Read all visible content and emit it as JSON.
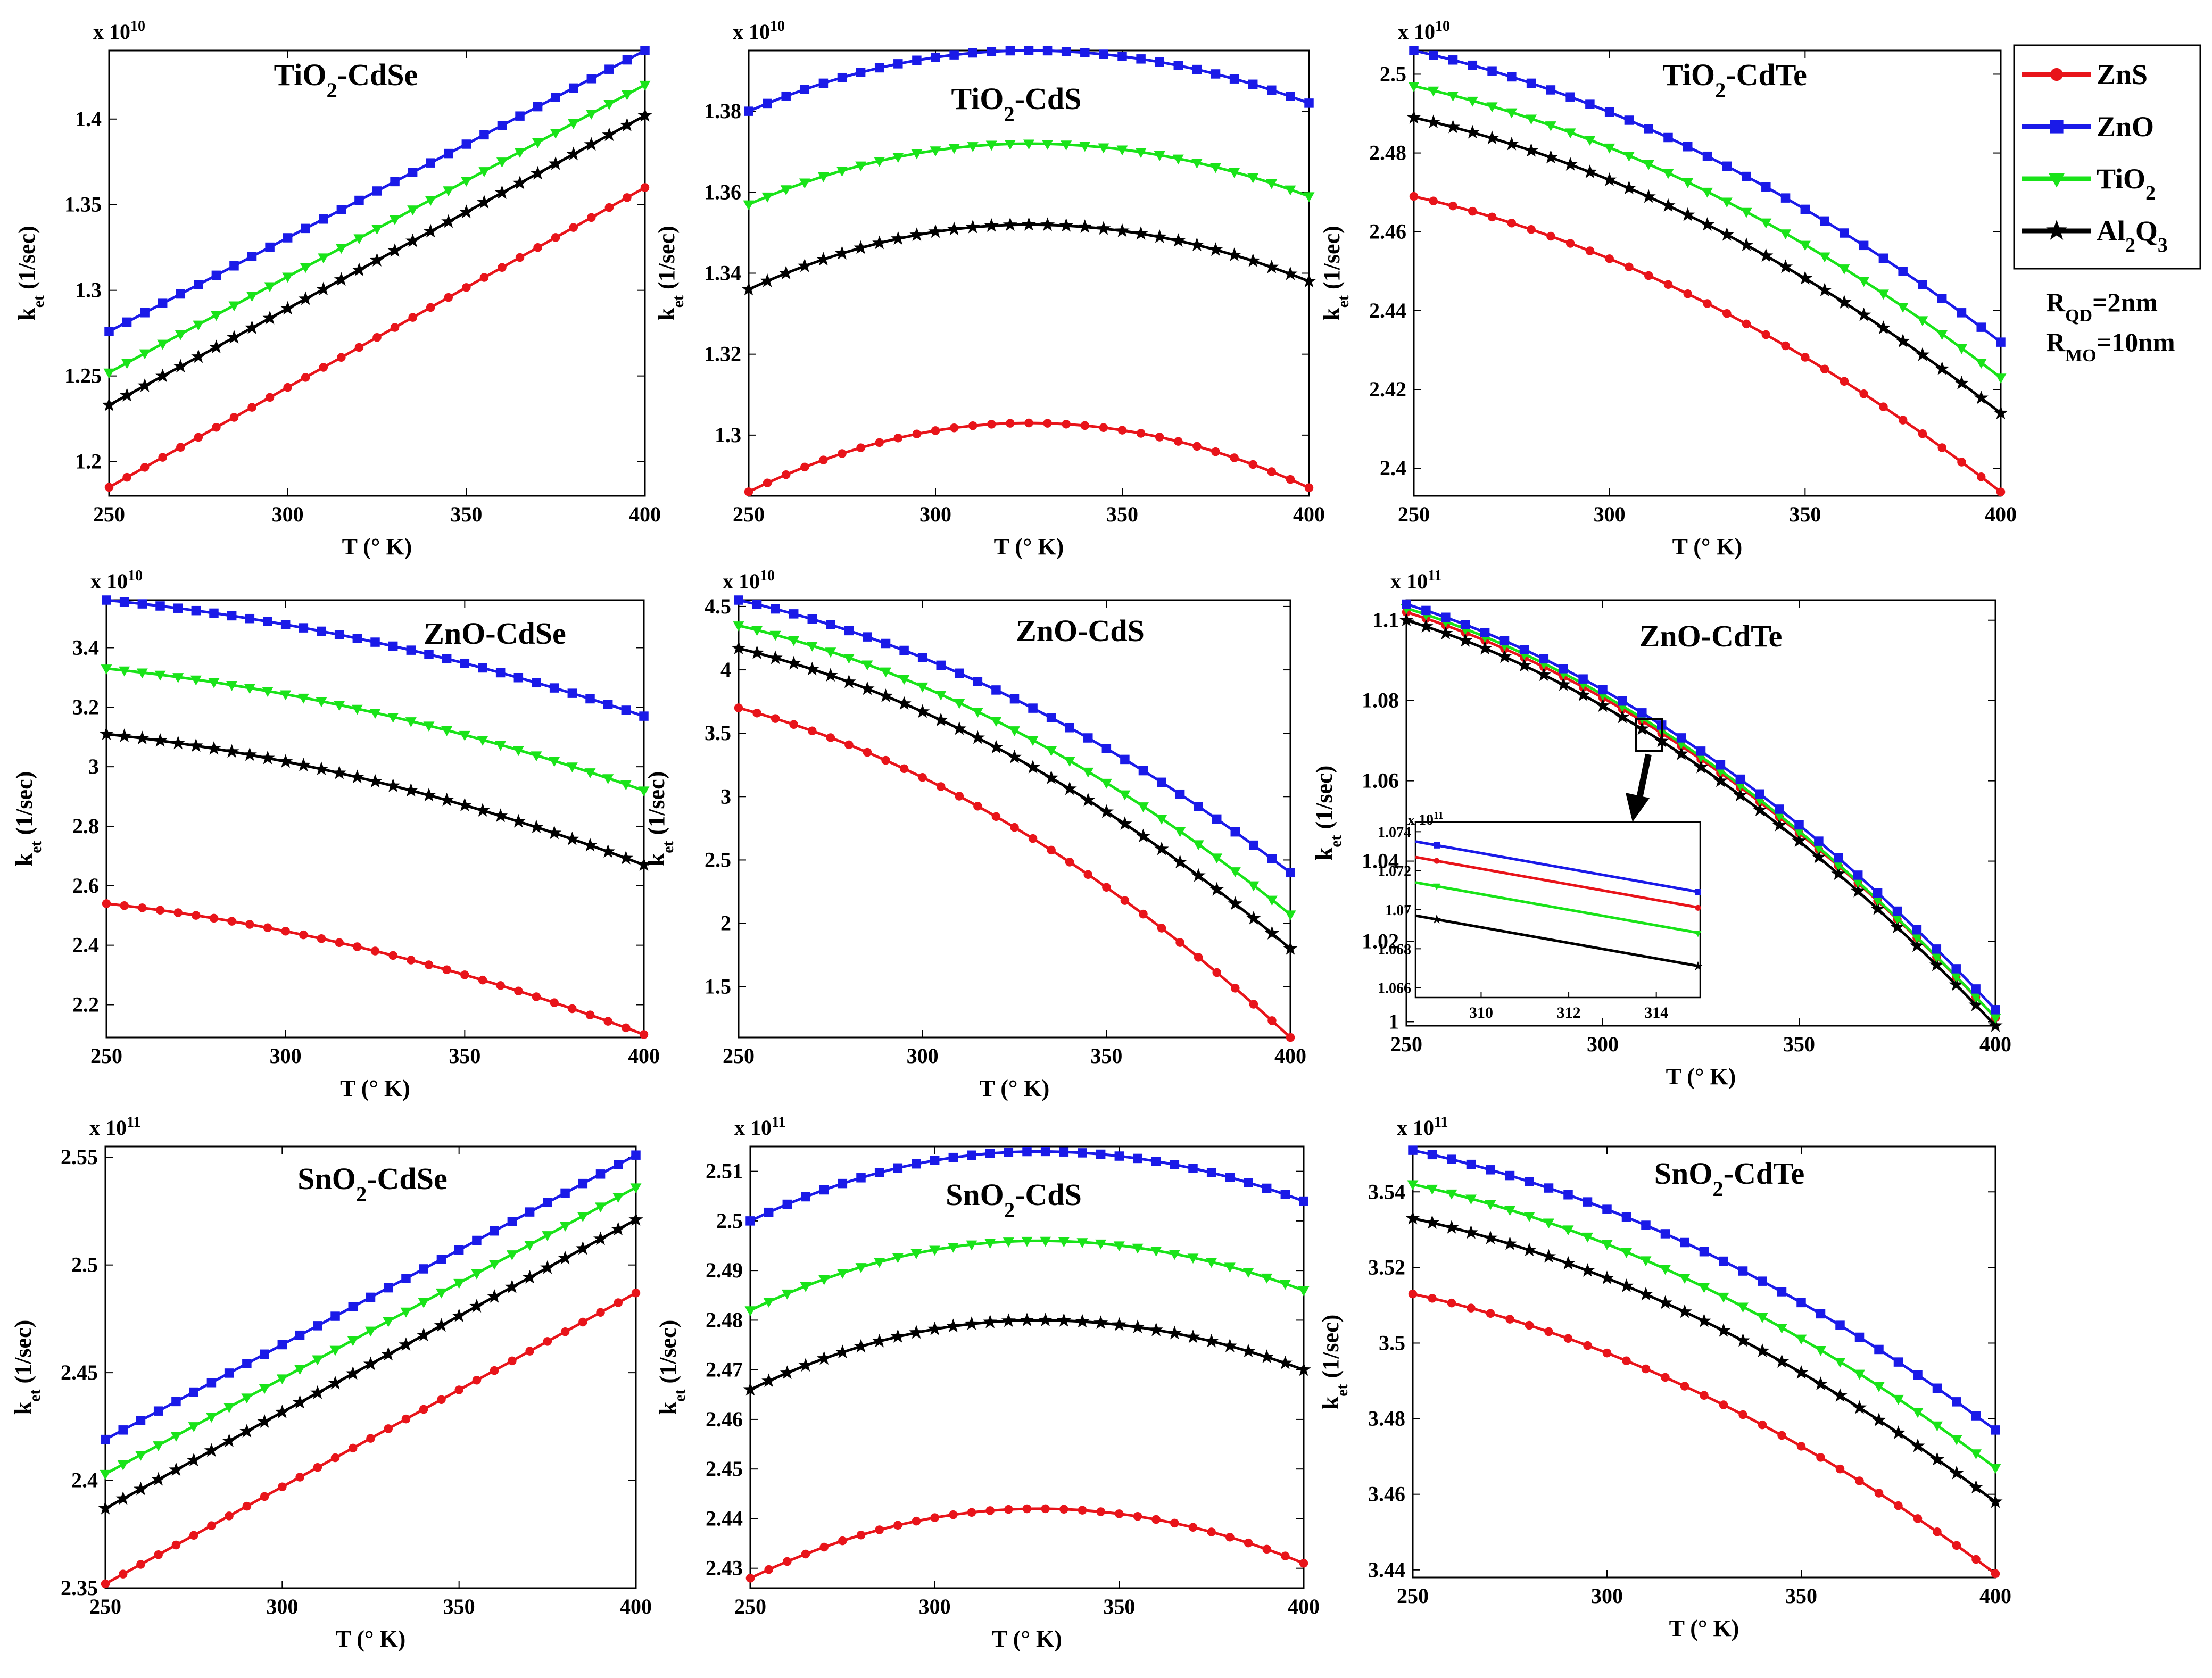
{
  "figure": {
    "legend": {
      "entries": [
        {
          "label": "ZnS",
          "color": "#e8141a",
          "marker": "circle"
        },
        {
          "label": "ZnO",
          "color": "#1a1ae8",
          "marker": "square"
        },
        {
          "label": "TiO2",
          "color": "#19e319",
          "marker": "triangle"
        },
        {
          "label": "Al2Q3",
          "color": "#000000",
          "marker": "star"
        }
      ]
    },
    "params": [
      "RQD=2nm",
      "RMO=10nm"
    ],
    "xlabel": "T (° K)",
    "ylabel": "ket (1/sec)",
    "inset_arrow": "zoom-arrow"
  },
  "chart_data": [
    {
      "type": "line",
      "title": "TiO2-CdSe",
      "multiplier": "x 10^10",
      "xlabel": "T (° K)",
      "ylabel": "ket (1/sec)",
      "xlim": [
        250,
        400
      ],
      "ylim": [
        1.18,
        1.44
      ],
      "xticks": [
        250,
        300,
        350,
        400
      ],
      "yticks": [
        1.2,
        1.25,
        1.3,
        1.35,
        1.4
      ],
      "ytick_labels": [
        "1.2",
        "1.25",
        "1.3",
        "1.35",
        "1.4"
      ],
      "xtick_labels": [
        "250",
        "300",
        "350",
        "400"
      ],
      "series": [
        {
          "name": "ZnS",
          "shape": "linear",
          "start": 1.185,
          "end": 1.36
        },
        {
          "name": "ZnO",
          "shape": "linear",
          "start": 1.276,
          "end": 1.44
        },
        {
          "name": "TiO2",
          "shape": "linear",
          "start": 1.252,
          "end": 1.42
        },
        {
          "name": "Al2Q3",
          "shape": "linear",
          "start": 1.233,
          "end": 1.402
        }
      ]
    },
    {
      "type": "line",
      "title": "TiO2-CdS",
      "multiplier": "x 10^10",
      "xlabel": "T (° K)",
      "ylabel": "ket (1/sec)",
      "xlim": [
        250,
        400
      ],
      "ylim": [
        1.285,
        1.395
      ],
      "xticks": [
        250,
        300,
        350,
        400
      ],
      "yticks": [
        1.3,
        1.32,
        1.34,
        1.36,
        1.38
      ],
      "ytick_labels": [
        "1.3",
        "1.32",
        "1.34",
        "1.36",
        "1.38"
      ],
      "xtick_labels": [
        "250",
        "300",
        "350",
        "400"
      ],
      "series": [
        {
          "name": "ZnS",
          "shape": "parabola",
          "start": 1.286,
          "end": 1.287,
          "peak": 1.303,
          "peak_x": 325
        },
        {
          "name": "ZnO",
          "shape": "parabola",
          "start": 1.38,
          "end": 1.382,
          "peak": 1.395,
          "peak_x": 325
        },
        {
          "name": "TiO2",
          "shape": "parabola",
          "start": 1.357,
          "end": 1.359,
          "peak": 1.372,
          "peak_x": 325
        },
        {
          "name": "Al2Q3",
          "shape": "parabola",
          "start": 1.336,
          "end": 1.338,
          "peak": 1.352,
          "peak_x": 325
        }
      ]
    },
    {
      "type": "line",
      "title": "TiO2-CdTe",
      "multiplier": "x 10^10",
      "xlabel": "T (° K)",
      "ylabel": "ket (1/sec)",
      "xlim": [
        250,
        400
      ],
      "ylim": [
        2.393,
        2.506
      ],
      "xticks": [
        250,
        300,
        350,
        400
      ],
      "yticks": [
        2.4,
        2.42,
        2.44,
        2.46,
        2.48,
        2.5
      ],
      "ytick_labels": [
        "2.4",
        "2.42",
        "2.44",
        "2.46",
        "2.48",
        "2.5"
      ],
      "xtick_labels": [
        "250",
        "300",
        "350",
        "400"
      ],
      "series": [
        {
          "name": "ZnS",
          "shape": "decline",
          "start": 2.469,
          "end": 2.394
        },
        {
          "name": "ZnO",
          "shape": "decline",
          "start": 2.506,
          "end": 2.432
        },
        {
          "name": "TiO2",
          "shape": "decline",
          "start": 2.497,
          "end": 2.423
        },
        {
          "name": "Al2Q3",
          "shape": "decline",
          "start": 2.489,
          "end": 2.414
        }
      ]
    },
    {
      "type": "line",
      "title": "ZnO-CdSe",
      "multiplier": "x 10^10",
      "xlabel": "T (° K)",
      "ylabel": "ket (1/sec)",
      "xlim": [
        250,
        400
      ],
      "ylim": [
        2.09,
        3.56
      ],
      "xticks": [
        250,
        300,
        350,
        400
      ],
      "yticks": [
        2.2,
        2.4,
        2.6,
        2.8,
        3,
        3.2,
        3.4
      ],
      "ytick_labels": [
        "2.2",
        "2.4",
        "2.6",
        "2.8",
        "3",
        "3.2",
        "3.4"
      ],
      "xtick_labels": [
        "250",
        "300",
        "350",
        "400"
      ],
      "series": [
        {
          "name": "ZnS",
          "shape": "decline",
          "start": 2.54,
          "end": 2.1
        },
        {
          "name": "ZnO",
          "shape": "decline",
          "start": 3.56,
          "end": 3.17
        },
        {
          "name": "TiO2",
          "shape": "decline",
          "start": 3.33,
          "end": 2.92
        },
        {
          "name": "Al2Q3",
          "shape": "decline",
          "start": 3.11,
          "end": 2.67
        }
      ]
    },
    {
      "type": "line",
      "title": "ZnO-CdS",
      "multiplier": "x 10^10",
      "xlabel": "T (° K)",
      "ylabel": "ket (1/sec)",
      "xlim": [
        250,
        400
      ],
      "ylim": [
        1.1,
        4.55
      ],
      "xticks": [
        250,
        300,
        350,
        400
      ],
      "yticks": [
        1.5,
        2,
        2.5,
        3,
        3.5,
        4,
        4.5
      ],
      "ytick_labels": [
        "1.5",
        "2",
        "2.5",
        "3",
        "3.5",
        "4",
        "4.5"
      ],
      "xtick_labels": [
        "250",
        "300",
        "350",
        "400"
      ],
      "series": [
        {
          "name": "ZnS",
          "shape": "decline",
          "start": 3.7,
          "end": 1.1
        },
        {
          "name": "ZnO",
          "shape": "decline",
          "start": 4.55,
          "end": 2.4
        },
        {
          "name": "TiO2",
          "shape": "decline",
          "start": 4.35,
          "end": 2.07
        },
        {
          "name": "Al2Q3",
          "shape": "decline",
          "start": 4.17,
          "end": 1.8
        }
      ]
    },
    {
      "type": "line",
      "title": "ZnO-CdTe",
      "multiplier": "x 10^11",
      "xlabel": "T (° K)",
      "ylabel": "ket (1/sec)",
      "xlim": [
        250,
        400
      ],
      "ylim": [
        0.999,
        1.105
      ],
      "xticks": [
        250,
        300,
        350,
        400
      ],
      "yticks": [
        1,
        1.02,
        1.04,
        1.06,
        1.08,
        1.1
      ],
      "ytick_labels": [
        "1",
        "1.02",
        "1.04",
        "1.06",
        "1.08",
        "1.1"
      ],
      "xtick_labels": [
        "250",
        "300",
        "350",
        "400"
      ],
      "series": [
        {
          "name": "ZnS",
          "shape": "decline",
          "start": 1.102,
          "end": 1.001
        },
        {
          "name": "ZnO",
          "shape": "decline",
          "start": 1.104,
          "end": 1.003
        },
        {
          "name": "TiO2",
          "shape": "decline",
          "start": 1.103,
          "end": 1.001
        },
        {
          "name": "Al2Q3",
          "shape": "decline",
          "start": 1.1,
          "end": 0.999
        }
      ],
      "inset": {
        "multiplier": "x 10^11",
        "xlim": [
          308.5,
          315
        ],
        "ylim": [
          1.0655,
          1.0745
        ],
        "xticks": [
          310,
          312,
          314
        ],
        "xtick_labels": [
          "310",
          "312",
          "314"
        ],
        "yticks": [
          1.066,
          1.068,
          1.07,
          1.072,
          1.074
        ],
        "ytick_labels": [
          "1.066",
          "1.068",
          "1.07",
          "1.072",
          "1.074"
        ],
        "series": [
          {
            "name": "ZnO",
            "start": 1.0735,
            "end": 1.0709
          },
          {
            "name": "ZnS",
            "start": 1.0727,
            "end": 1.0701
          },
          {
            "name": "TiO2",
            "start": 1.0714,
            "end": 1.0688
          },
          {
            "name": "Al2Q3",
            "start": 1.0697,
            "end": 1.0671
          }
        ]
      }
    },
    {
      "type": "line",
      "title": "SnO2-CdSe",
      "multiplier": "x 10^11",
      "xlabel": "T (° K)",
      "ylabel": "ket (1/sec)",
      "xlim": [
        250,
        400
      ],
      "ylim": [
        2.35,
        2.555
      ],
      "xticks": [
        250,
        300,
        350,
        400
      ],
      "yticks": [
        2.35,
        2.4,
        2.45,
        2.5,
        2.55
      ],
      "ytick_labels": [
        "2.35",
        "2.4",
        "2.45",
        "2.5",
        "2.55"
      ],
      "xtick_labels": [
        "250",
        "300",
        "350",
        "400"
      ],
      "series": [
        {
          "name": "ZnS",
          "shape": "linear",
          "start": 2.352,
          "end": 2.487
        },
        {
          "name": "ZnO",
          "shape": "linear",
          "start": 2.419,
          "end": 2.551
        },
        {
          "name": "TiO2",
          "shape": "linear",
          "start": 2.403,
          "end": 2.536
        },
        {
          "name": "Al2Q3",
          "shape": "linear",
          "start": 2.387,
          "end": 2.521
        }
      ]
    },
    {
      "type": "line",
      "title": "SnO2-CdS",
      "multiplier": "x 10^11",
      "xlabel": "T (° K)",
      "ylabel": "ket (1/sec)",
      "xlim": [
        250,
        400
      ],
      "ylim": [
        2.426,
        2.515
      ],
      "xticks": [
        250,
        300,
        350,
        400
      ],
      "yticks": [
        2.43,
        2.44,
        2.45,
        2.46,
        2.47,
        2.48,
        2.49,
        2.5,
        2.51
      ],
      "ytick_labels": [
        "2.43",
        "2.44",
        "2.45",
        "2.46",
        "2.47",
        "2.48",
        "2.49",
        "2.5",
        "2.51"
      ],
      "xtick_labels": [
        "250",
        "300",
        "350",
        "400"
      ],
      "series": [
        {
          "name": "ZnS",
          "shape": "parabola",
          "start": 2.428,
          "end": 2.431,
          "peak": 2.442,
          "peak_x": 328
        },
        {
          "name": "ZnO",
          "shape": "parabola",
          "start": 2.5,
          "end": 2.504,
          "peak": 2.514,
          "peak_x": 328
        },
        {
          "name": "TiO2",
          "shape": "parabola",
          "start": 2.482,
          "end": 2.486,
          "peak": 2.496,
          "peak_x": 328
        },
        {
          "name": "Al2Q3",
          "shape": "parabola",
          "start": 2.466,
          "end": 2.47,
          "peak": 2.48,
          "peak_x": 328
        }
      ]
    },
    {
      "type": "line",
      "title": "SnO2-CdTe",
      "multiplier": "x 10^11",
      "xlabel": "T (° K)",
      "ylabel": "ket (1/sec)",
      "xlim": [
        250,
        400
      ],
      "ylim": [
        3.438,
        3.552
      ],
      "xticks": [
        250,
        300,
        350,
        400
      ],
      "yticks": [
        3.44,
        3.46,
        3.48,
        3.5,
        3.52,
        3.54
      ],
      "ytick_labels": [
        "3.44",
        "3.46",
        "3.48",
        "3.5",
        "3.52",
        "3.54"
      ],
      "xtick_labels": [
        "250",
        "300",
        "350",
        "400"
      ],
      "series": [
        {
          "name": "ZnS",
          "shape": "decline",
          "start": 3.513,
          "end": 3.439
        },
        {
          "name": "ZnO",
          "shape": "decline",
          "start": 3.551,
          "end": 3.477
        },
        {
          "name": "TiO2",
          "shape": "decline",
          "start": 3.542,
          "end": 3.467
        },
        {
          "name": "Al2Q3",
          "shape": "decline",
          "start": 3.533,
          "end": 3.458
        }
      ]
    }
  ]
}
